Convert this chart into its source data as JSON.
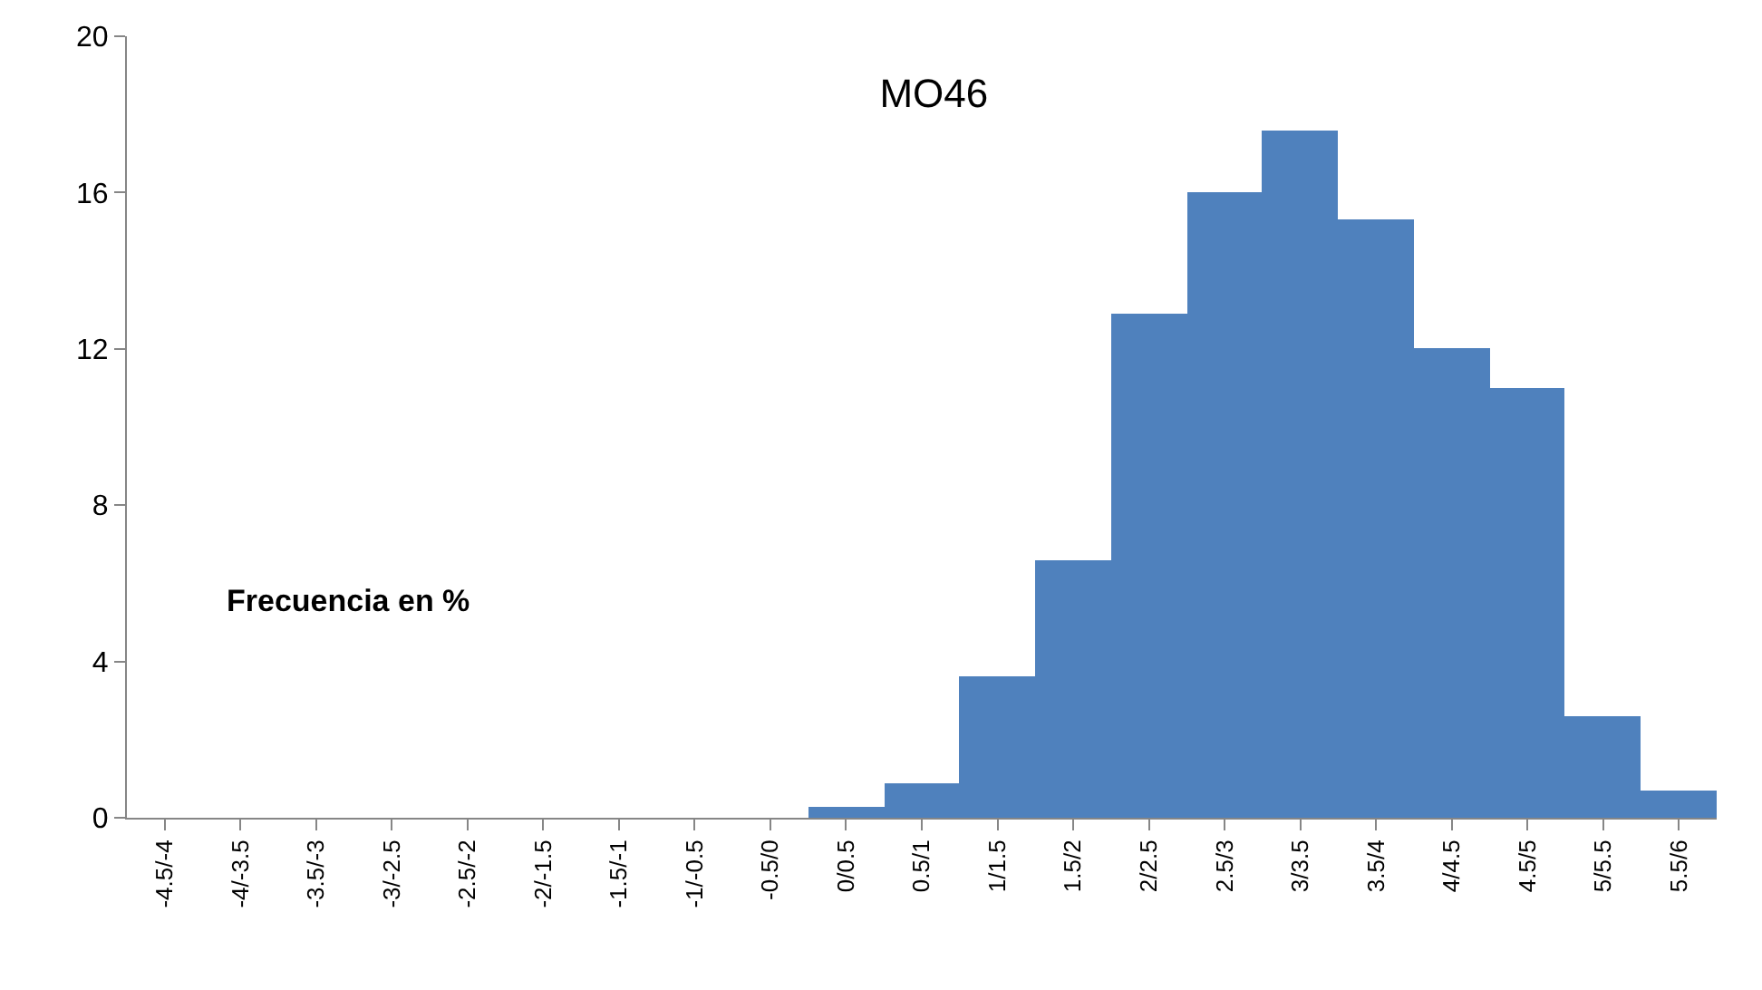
{
  "chart_data": {
    "type": "bar",
    "title": "MO46",
    "categories": [
      "-4.5/-4",
      "-4/-3.5",
      "-3.5/-3",
      "-3/-2.5",
      "-2.5/-2",
      "-2/-1.5",
      "-1.5/-1",
      "-1/-0.5",
      "-0.5/0",
      "0/0.5",
      "0.5/1",
      "1/1.5",
      "1.5/2",
      "2/2.5",
      "2.5/3",
      "3/3.5",
      "3.5/4",
      "4/4.5",
      "4.5/5",
      "5/5.5",
      "5.5/6"
    ],
    "values": [
      null,
      null,
      null,
      null,
      null,
      null,
      null,
      null,
      null,
      0.3,
      0.9,
      3.6,
      6.6,
      12.9,
      16,
      17.6,
      15.3,
      12.0,
      11.0,
      2.6,
      0.7
    ],
    "color": "#4f81bd",
    "ylim": [
      0,
      20
    ],
    "yticks": [
      0,
      4,
      8,
      12,
      16,
      20
    ],
    "annotations": [
      "Frecuencia en %"
    ]
  }
}
